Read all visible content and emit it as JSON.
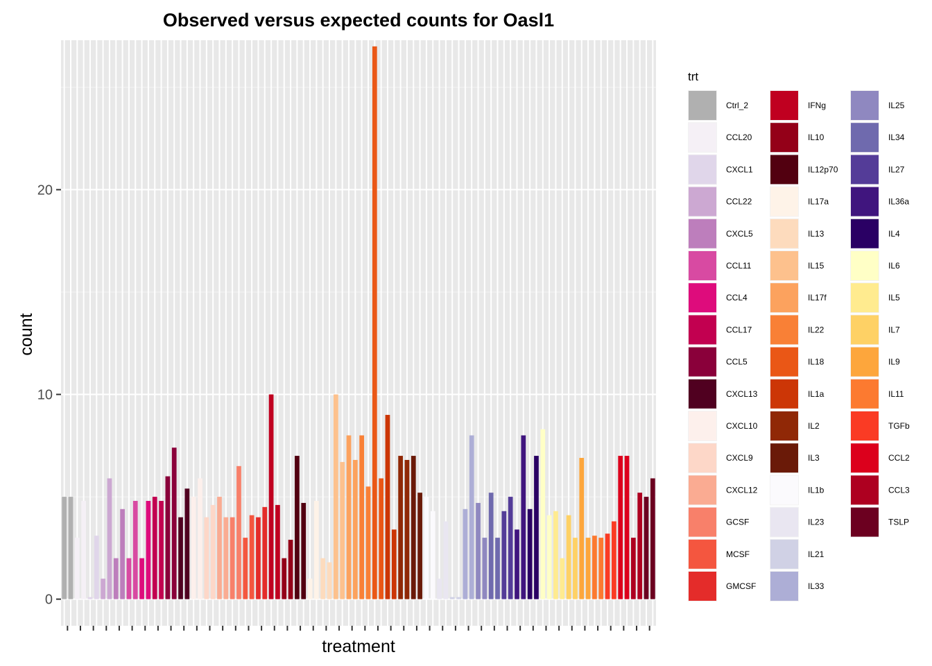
{
  "chart_data": {
    "type": "bar",
    "title": "Observed versus expected counts for Oasl1",
    "xlabel": "treatment",
    "ylabel": "count",
    "ylim": [
      -1.3,
      27.3
    ],
    "yticks": [
      0,
      10,
      20
    ],
    "x_tick_labels_shown": false,
    "grid": true,
    "panel_background": "#e8e8e8",
    "legend_position": "right",
    "legend": {
      "title": "trt",
      "entries": [
        {
          "name": "Ctrl_2",
          "color": "#b0b0b0"
        },
        {
          "name": "CCL20",
          "color": "#f5f0f6"
        },
        {
          "name": "CXCL1",
          "color": "#e0d6ea"
        },
        {
          "name": "CCL22",
          "color": "#cca8d2"
        },
        {
          "name": "CXCL5",
          "color": "#bd7ebc"
        },
        {
          "name": "CCL11",
          "color": "#d84aa2"
        },
        {
          "name": "CCL4",
          "color": "#de0c7c"
        },
        {
          "name": "CCL17",
          "color": "#c20050"
        },
        {
          "name": "CCL5",
          "color": "#8a003a"
        },
        {
          "name": "CXCL13",
          "color": "#500020"
        },
        {
          "name": "CXCL10",
          "color": "#fdf0ec"
        },
        {
          "name": "CXCL9",
          "color": "#fdd7c8"
        },
        {
          "name": "CXCL12",
          "color": "#faab92"
        },
        {
          "name": "GCSF",
          "color": "#f8806a"
        },
        {
          "name": "MCSF",
          "color": "#f4563f"
        },
        {
          "name": "GMCSF",
          "color": "#e42c2a"
        },
        {
          "name": "IFNg",
          "color": "#c00020"
        },
        {
          "name": "IL10",
          "color": "#940018"
        },
        {
          "name": "IL12p70",
          "color": "#520010"
        },
        {
          "name": "IL17a",
          "color": "#fef3e8"
        },
        {
          "name": "IL13",
          "color": "#fddbbd"
        },
        {
          "name": "IL15",
          "color": "#fdc18d"
        },
        {
          "name": "IL17f",
          "color": "#fca25e"
        },
        {
          "name": "IL22",
          "color": "#f98036"
        },
        {
          "name": "IL18",
          "color": "#ea5716"
        },
        {
          "name": "IL1a",
          "color": "#cc3606"
        },
        {
          "name": "IL2",
          "color": "#902806"
        },
        {
          "name": "IL3",
          "color": "#6a1a08"
        },
        {
          "name": "IL1b",
          "color": "#fbfafd"
        },
        {
          "name": "IL23",
          "color": "#e9e6f1"
        },
        {
          "name": "IL21",
          "color": "#d0d1e5"
        },
        {
          "name": "IL33",
          "color": "#adaed6"
        },
        {
          "name": "IL25",
          "color": "#8f88c0"
        },
        {
          "name": "IL34",
          "color": "#6f6aae"
        },
        {
          "name": "IL27",
          "color": "#543c98"
        },
        {
          "name": "IL36a",
          "color": "#40157e"
        },
        {
          "name": "IL4",
          "color": "#2a0064"
        },
        {
          "name": "IL6",
          "color": "#ffffc6"
        },
        {
          "name": "IL5",
          "color": "#ffeb8f"
        },
        {
          "name": "IL7",
          "color": "#fed165"
        },
        {
          "name": "IL9",
          "color": "#fda63c"
        },
        {
          "name": "IL11",
          "color": "#fc7a30"
        },
        {
          "name": "TGFb",
          "color": "#fa3b24"
        },
        {
          "name": "CCL2",
          "color": "#dc001c"
        },
        {
          "name": "CCL3",
          "color": "#ae0020"
        },
        {
          "name": "TSLP",
          "color": "#6c0020"
        }
      ]
    },
    "groups": [
      {
        "trt": "Ctrl_2",
        "values": [
          5.0,
          5.0
        ]
      },
      {
        "trt": "CCL20",
        "values": [
          3.0,
          4.8
        ]
      },
      {
        "trt": "CXCL1",
        "values": [
          0.1,
          3.1
        ]
      },
      {
        "trt": "CCL22",
        "values": [
          1.0,
          5.9
        ]
      },
      {
        "trt": "CXCL5",
        "values": [
          2.0,
          4.4
        ]
      },
      {
        "trt": "CCL11",
        "values": [
          2.0,
          4.8
        ]
      },
      {
        "trt": "CCL4",
        "values": [
          2.0,
          4.8
        ]
      },
      {
        "trt": "CCL17",
        "values": [
          5.0,
          4.8
        ]
      },
      {
        "trt": "CCL5",
        "values": [
          6.0,
          7.4
        ]
      },
      {
        "trt": "CXCL13",
        "values": [
          4.0,
          5.4
        ]
      },
      {
        "trt": "CXCL10",
        "values": [
          5.0,
          5.9
        ]
      },
      {
        "trt": "CXCL9",
        "values": [
          4.0,
          4.6
        ]
      },
      {
        "trt": "CXCL12",
        "values": [
          5.0,
          4.0
        ]
      },
      {
        "trt": "GCSF",
        "values": [
          4.0,
          6.5
        ]
      },
      {
        "trt": "MCSF",
        "values": [
          3.0,
          4.1
        ]
      },
      {
        "trt": "GMCSF",
        "values": [
          4.0,
          4.5
        ]
      },
      {
        "trt": "IFNg",
        "values": [
          10.0,
          4.6
        ]
      },
      {
        "trt": "IL10",
        "values": [
          2.0,
          2.9
        ]
      },
      {
        "trt": "IL12p70",
        "values": [
          7.0,
          4.7
        ]
      },
      {
        "trt": "IL17a",
        "values": [
          1.0,
          4.8
        ]
      },
      {
        "trt": "IL13",
        "values": [
          2.0,
          1.8
        ]
      },
      {
        "trt": "IL15",
        "values": [
          10.0,
          6.7
        ]
      },
      {
        "trt": "IL17f",
        "values": [
          8.0,
          6.8
        ]
      },
      {
        "trt": "IL22",
        "values": [
          8.0,
          5.5
        ]
      },
      {
        "trt": "IL18",
        "values": [
          27.0,
          5.9
        ]
      },
      {
        "trt": "IL1a",
        "values": [
          9.0,
          3.4
        ]
      },
      {
        "trt": "IL2",
        "values": [
          7.0,
          6.8
        ]
      },
      {
        "trt": "IL3",
        "values": [
          7.0,
          5.2
        ]
      },
      {
        "trt": "IL1b",
        "values": [
          5.0,
          4.3
        ]
      },
      {
        "trt": "IL23",
        "values": [
          1.0,
          3.8
        ]
      },
      {
        "trt": "IL21",
        "values": [
          0.1,
          0.1
        ]
      },
      {
        "trt": "IL33",
        "values": [
          4.4,
          8.0
        ]
      },
      {
        "trt": "IL25",
        "values": [
          4.7,
          3.0
        ]
      },
      {
        "trt": "IL34",
        "values": [
          5.2,
          3.0
        ]
      },
      {
        "trt": "IL27",
        "values": [
          4.3,
          5.0
        ]
      },
      {
        "trt": "IL36a",
        "values": [
          3.4,
          8.0
        ]
      },
      {
        "trt": "IL4",
        "values": [
          4.4,
          7.0
        ]
      },
      {
        "trt": "IL6",
        "values": [
          8.3,
          4.1
        ]
      },
      {
        "trt": "IL5",
        "values": [
          4.3,
          2.0
        ]
      },
      {
        "trt": "IL7",
        "values": [
          4.1,
          3.0
        ]
      },
      {
        "trt": "IL9",
        "values": [
          6.9,
          3.0
        ]
      },
      {
        "trt": "IL11",
        "values": [
          3.1,
          3.0
        ]
      },
      {
        "trt": "TGFb",
        "values": [
          3.2,
          3.8
        ]
      },
      {
        "trt": "CCL2",
        "values": [
          7.0,
          7.0
        ]
      },
      {
        "trt": "CCL3",
        "values": [
          3.0,
          5.2
        ]
      },
      {
        "trt": "TSLP",
        "values": [
          5.0,
          5.9
        ]
      }
    ]
  }
}
